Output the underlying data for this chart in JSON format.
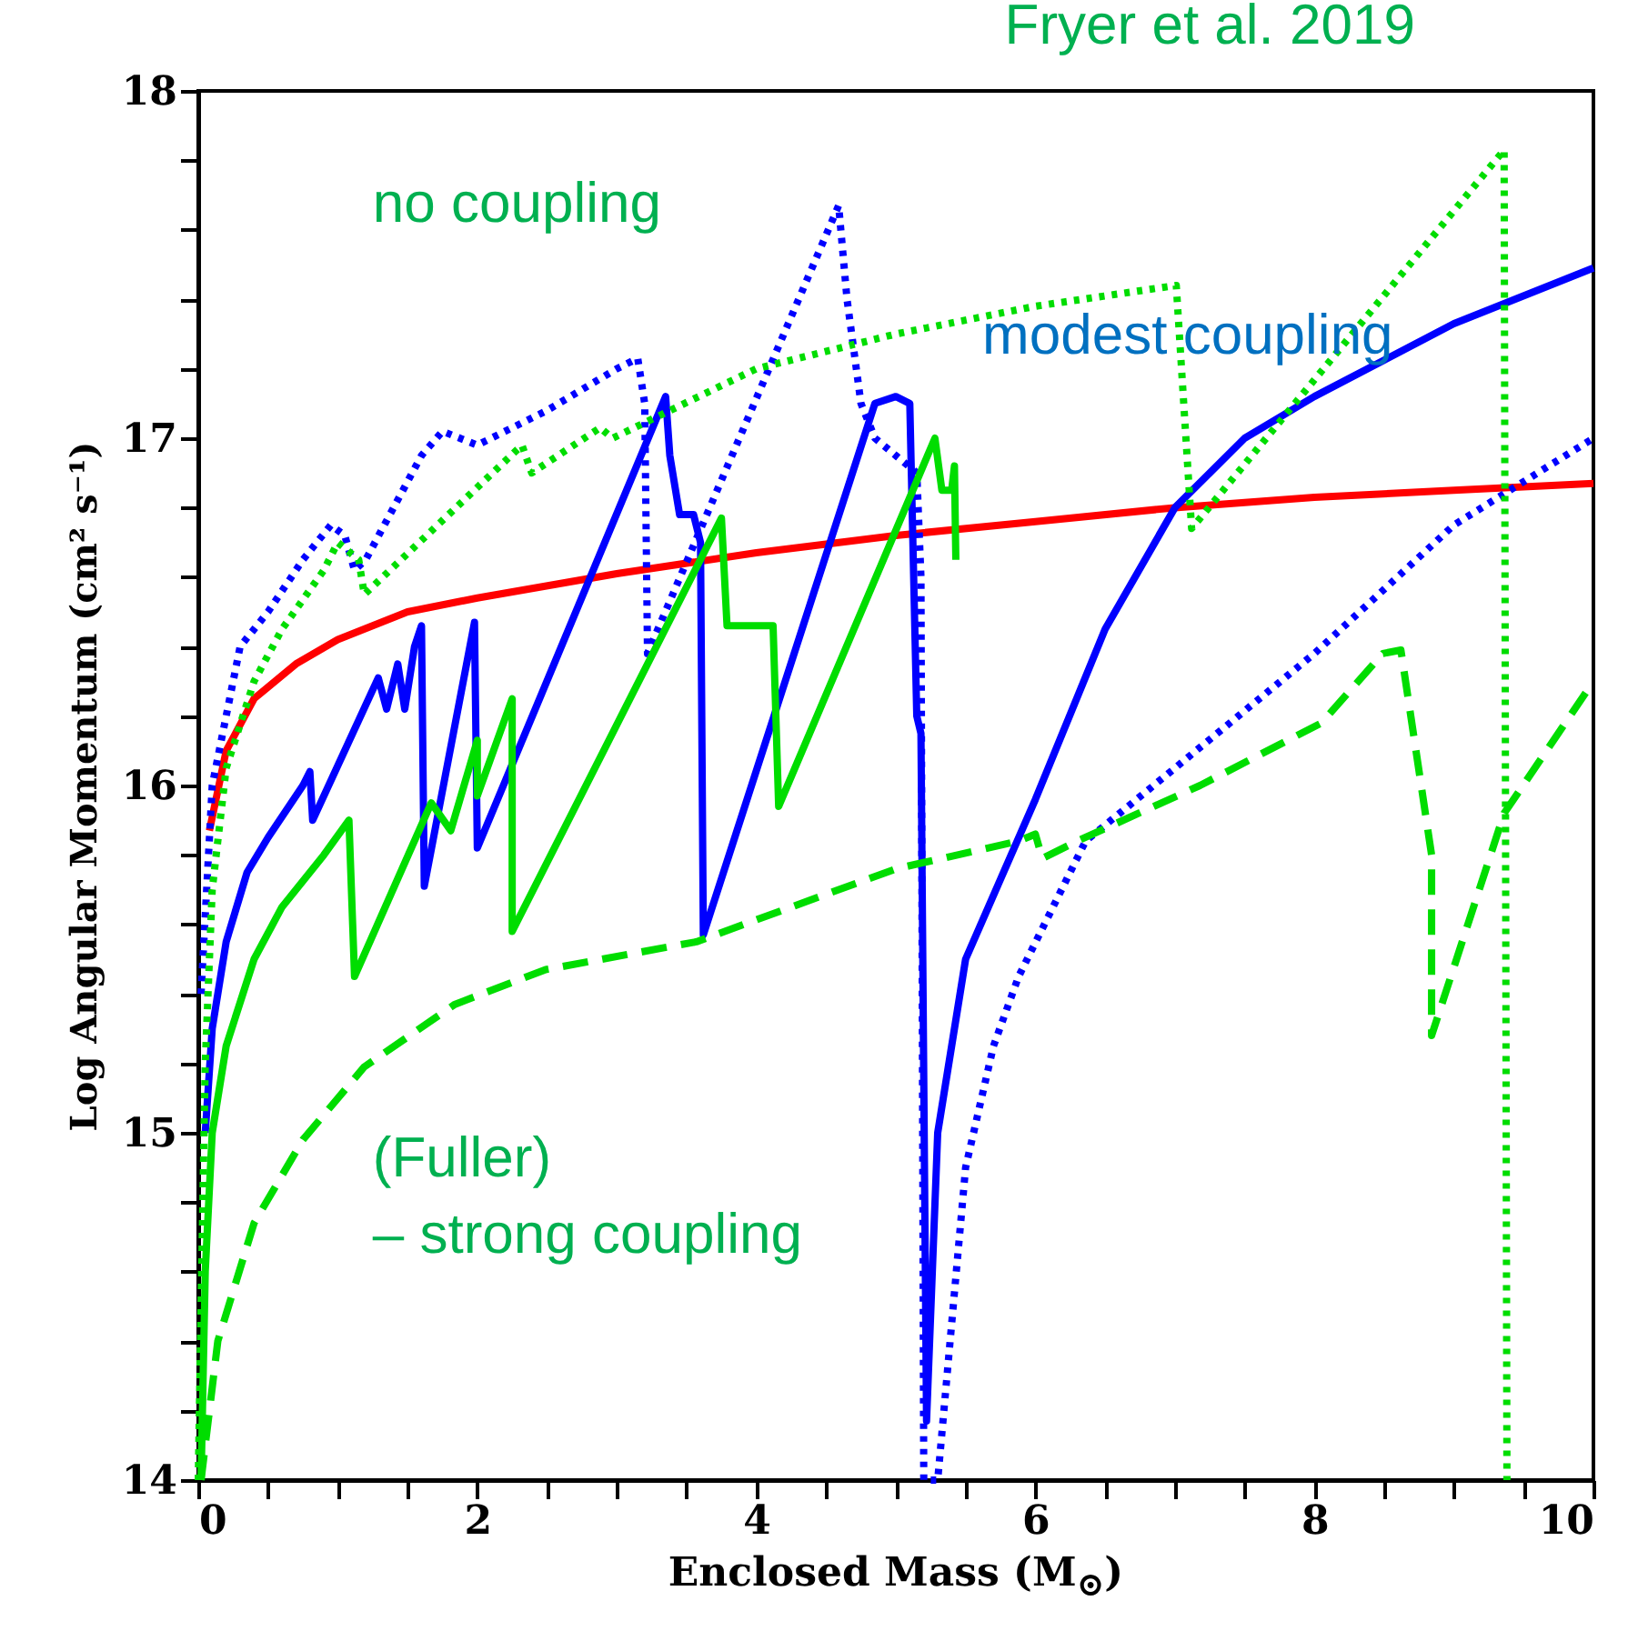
{
  "chart_data": {
    "type": "line",
    "title": "Fryer et al.  2019",
    "xlabel": "Enclosed Mass (M$_{⊙}$)",
    "ylabel": "Log Angular Momentum (cm² s⁻¹)",
    "xlim": [
      0,
      10
    ],
    "ylim": [
      14,
      18
    ],
    "xticks": [
      0,
      {
        "value": 0.5,
        "label": null
      },
      2,
      {
        "value": 1,
        "label": null
      },
      {
        "value": 1.5,
        "label": null
      },
      {
        "value": 2.5,
        "label": null
      },
      {
        "value": 3,
        "label": null
      },
      {
        "value": 3.5,
        "label": null
      },
      4,
      {
        "value": 4.5,
        "label": null
      },
      {
        "value": 5,
        "label": null
      },
      {
        "value": 5.5,
        "label": null
      },
      6,
      {
        "value": 6.5,
        "label": null
      },
      {
        "value": 7,
        "label": null
      },
      {
        "value": 7.5,
        "label": null
      },
      8,
      {
        "value": 8.5,
        "label": null
      },
      {
        "value": 9,
        "label": null
      },
      {
        "value": 9.5,
        "label": null
      },
      10
    ],
    "yticks": [
      14,
      {
        "value": 14.2,
        "label": null
      },
      {
        "value": 14.4,
        "label": null
      },
      {
        "value": 14.6,
        "label": null
      },
      {
        "value": 14.8,
        "label": null
      },
      15,
      {
        "value": 15.2,
        "label": null
      },
      {
        "value": 15.4,
        "label": null
      },
      {
        "value": 15.6,
        "label": null
      },
      {
        "value": 15.8,
        "label": null
      },
      16,
      {
        "value": 16.2,
        "label": null
      },
      {
        "value": 16.4,
        "label": null
      },
      {
        "value": 16.6,
        "label": null
      },
      {
        "value": 16.8,
        "label": null
      },
      17,
      {
        "value": 17.2,
        "label": null
      },
      {
        "value": 17.4,
        "label": null
      },
      {
        "value": 17.6,
        "label": null
      },
      {
        "value": 17.8,
        "label": null
      },
      18
    ],
    "annotations": [
      "no coupling",
      "modest coupling",
      "(Fuller) – strong coupling"
    ],
    "series": [
      {
        "color": "#ff0000",
        "line_style": "solid",
        "x": [
          0.08,
          0.2,
          0.4,
          0.7,
          1,
          1.5,
          2,
          3,
          4,
          5,
          6,
          7,
          8,
          9,
          10
        ],
        "values": [
          15.87,
          16.1,
          16.25,
          16.35,
          16.42,
          16.5,
          16.54,
          16.61,
          16.67,
          16.72,
          16.76,
          16.8,
          16.83,
          16.85,
          16.87
        ]
      },
      {
        "color": "#0000ff",
        "line_style": "solid",
        "x": [
          0.05,
          0.1,
          0.2,
          0.35,
          0.5,
          0.75,
          0.8,
          0.82,
          1.29,
          1.35,
          1.43,
          1.48,
          1.55,
          1.6,
          1.62,
          1.98,
          2.0,
          3.35,
          3.38,
          3.45,
          3.55,
          3.6,
          3.62,
          4.85,
          5.0,
          5.1,
          5.15,
          5.18,
          5.22,
          5.3,
          5.5,
          6,
          6.5,
          7,
          7.5,
          8,
          9,
          10
        ],
        "values": [
          15.0,
          15.3,
          15.55,
          15.75,
          15.85,
          16.0,
          16.04,
          15.9,
          16.31,
          16.22,
          16.35,
          16.22,
          16.4,
          16.46,
          15.71,
          16.47,
          15.82,
          17.12,
          16.95,
          16.78,
          16.78,
          16.7,
          15.57,
          17.1,
          17.12,
          17.1,
          16.2,
          16.15,
          14.17,
          15.0,
          15.5,
          15.96,
          16.45,
          16.8,
          17.0,
          17.12,
          17.33,
          17.49
        ]
      },
      {
        "color": "#0000ff",
        "line_style": "dotted",
        "x": [
          0.02,
          0.1,
          0.3,
          0.5,
          0.75,
          0.95,
          1.05,
          1.12,
          1.2,
          1.6,
          1.75,
          2.0,
          2.5,
          3.0,
          3.15,
          3.2,
          3.22,
          4.59,
          4.65,
          4.75,
          4.85,
          5.0,
          5.15,
          5.18,
          5.2,
          5.3,
          5.5,
          5.7,
          5.88,
          6.36,
          7,
          8,
          9,
          10
        ],
        "values": [
          15.4,
          16.0,
          16.4,
          16.5,
          16.65,
          16.75,
          16.72,
          16.62,
          16.65,
          16.95,
          17.02,
          16.98,
          17.08,
          17.2,
          17.23,
          17.1,
          16.38,
          17.67,
          17.4,
          17.1,
          17.0,
          16.95,
          16.9,
          16.6,
          14.0,
          14.0,
          14.9,
          15.25,
          15.45,
          15.84,
          16.05,
          16.38,
          16.75,
          17.0
        ]
      },
      {
        "color": "#00dd00",
        "line_style": "solid",
        "x": [
          0.02,
          0.05,
          0.1,
          0.2,
          0.4,
          0.6,
          0.9,
          1.08,
          1.12,
          1.67,
          1.81,
          2.0,
          2.0,
          2.25,
          2.25,
          3.75,
          3.79,
          4.12,
          4.16,
          5.28,
          5.33,
          5.4,
          5.42,
          5.43
        ],
        "values": [
          14.0,
          14.6,
          15.0,
          15.25,
          15.5,
          15.65,
          15.8,
          15.9,
          15.45,
          15.95,
          15.87,
          16.13,
          15.97,
          16.25,
          15.58,
          16.77,
          16.46,
          16.46,
          15.94,
          17.0,
          16.85,
          16.85,
          16.92,
          16.65
        ]
      },
      {
        "color": "#00dd00",
        "line_style": "dotted",
        "x": [
          0.0,
          0.02,
          0.05,
          0.1,
          0.2,
          0.4,
          0.6,
          0.9,
          1.0,
          1.15,
          1.19,
          2.32,
          2.39,
          2.88,
          2.97,
          4,
          5,
          6,
          7.01,
          7.12,
          9.36,
          9.38
        ],
        "values": [
          14.0,
          14.5,
          15.2,
          15.7,
          16.05,
          16.3,
          16.45,
          16.62,
          16.7,
          16.65,
          16.55,
          16.98,
          16.9,
          17.03,
          17.0,
          17.2,
          17.3,
          17.38,
          17.44,
          16.74,
          17.83,
          14.0
        ]
      },
      {
        "color": "#00dd00",
        "line_style": "dashed",
        "x": [
          0.02,
          0.14,
          0.4,
          0.75,
          1.19,
          1.84,
          2.49,
          3.57,
          5,
          5.88,
          6.0,
          6.05,
          6.3,
          7.18,
          8.05,
          8.49,
          8.62,
          8.84,
          8.84,
          9.36,
          9.95
        ],
        "values": [
          14.0,
          14.4,
          14.74,
          14.98,
          15.19,
          15.37,
          15.47,
          15.55,
          15.76,
          15.84,
          15.86,
          15.79,
          15.84,
          16.0,
          16.18,
          16.38,
          16.39,
          15.8,
          15.28,
          15.92,
          16.27
        ]
      }
    ]
  }
}
